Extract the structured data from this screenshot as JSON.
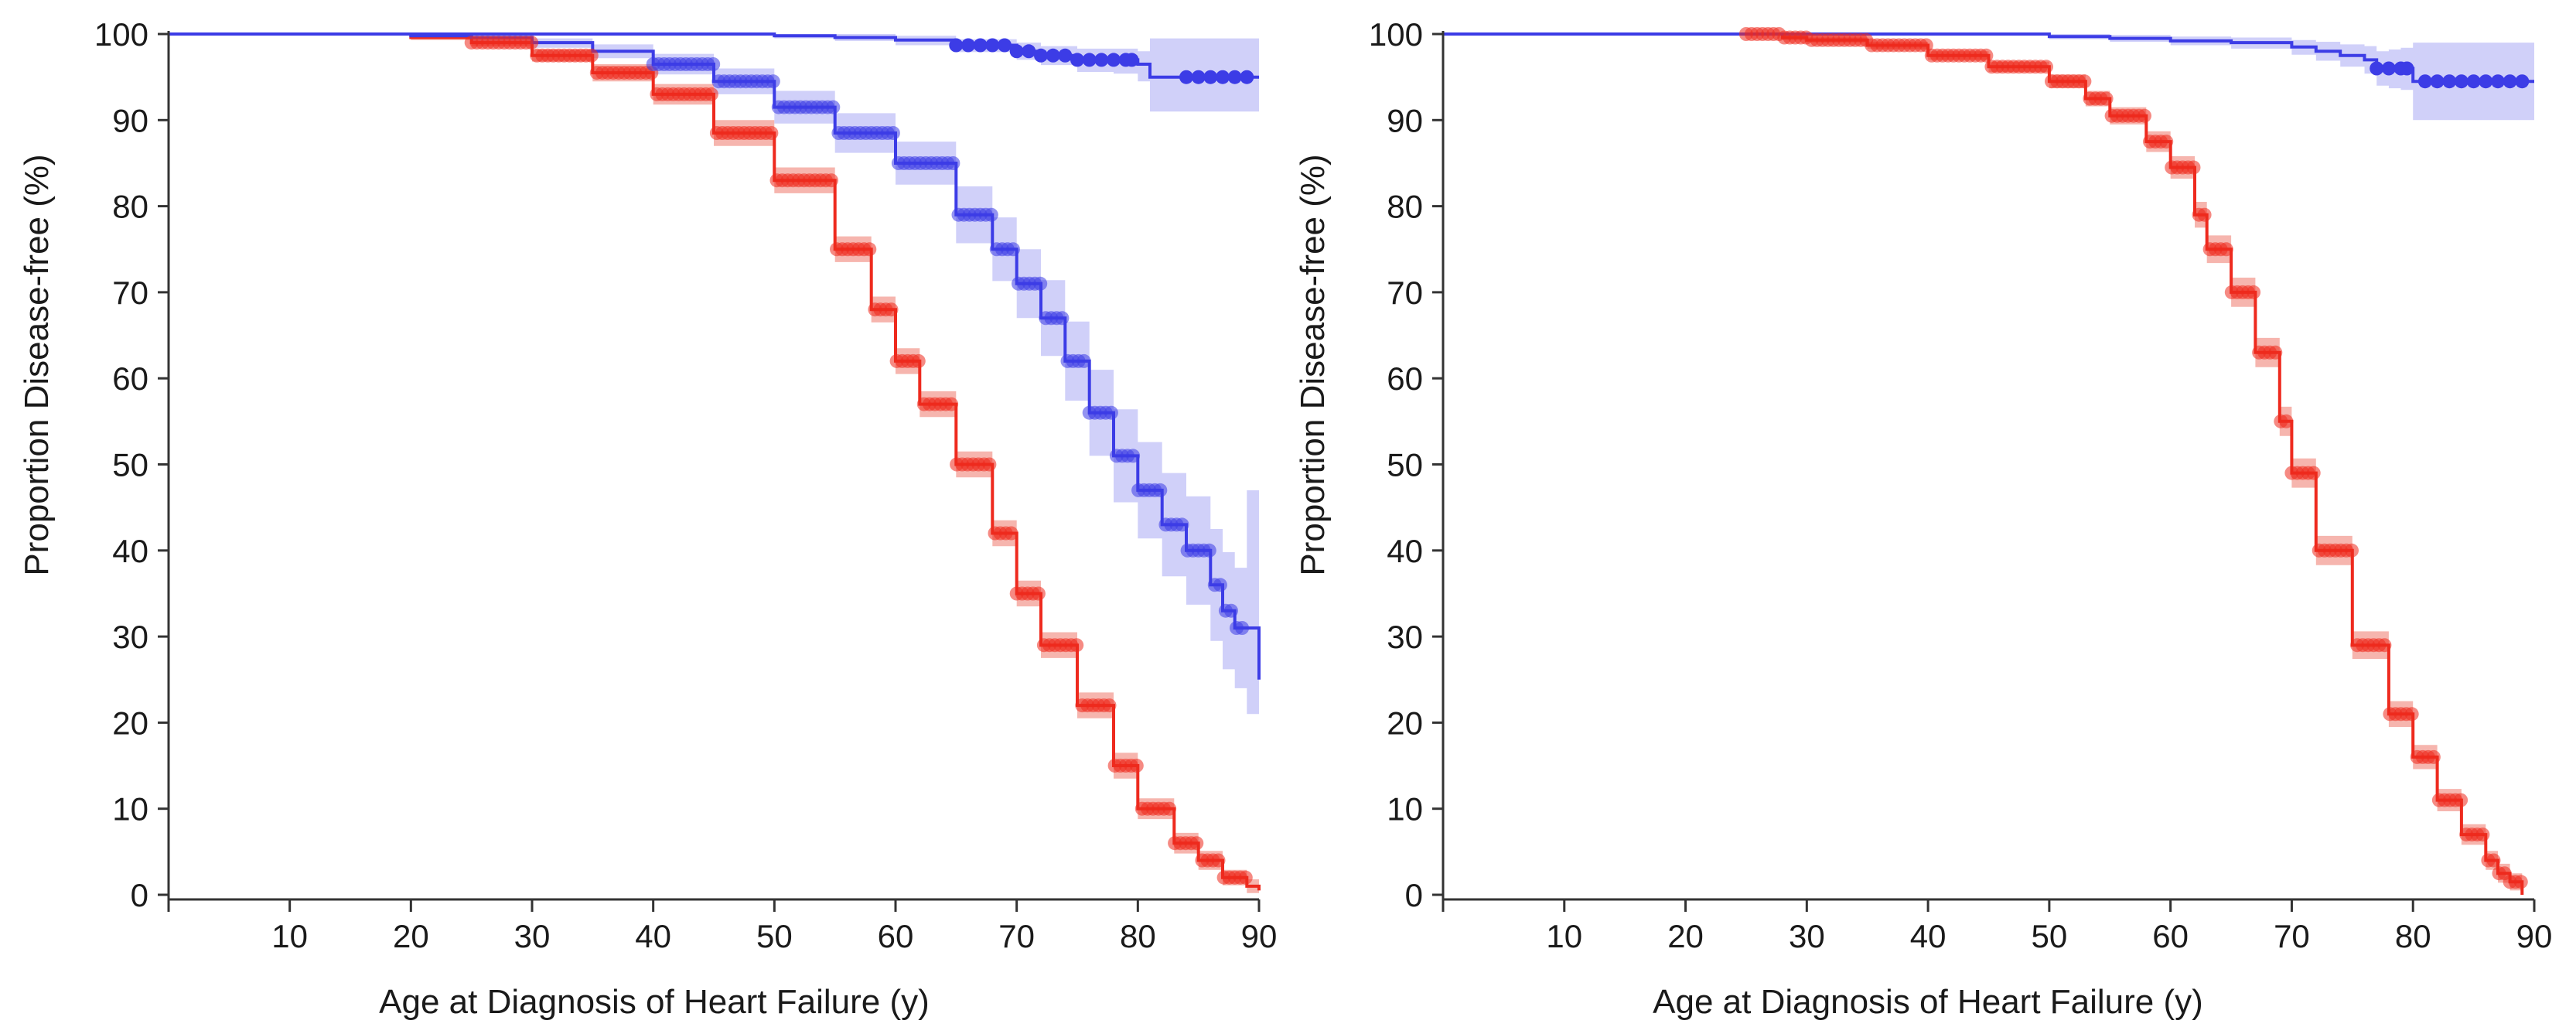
{
  "figure": {
    "background": "#ffffff",
    "colors": {
      "red_line": "#ee2a1e",
      "red_band": "#f4a29a",
      "blue_line": "#3c3ce6",
      "blue_band": "#c4c4f8"
    }
  },
  "chart_data": [
    {
      "id": "left",
      "type": "line",
      "xlabel": "Age at Diagnosis of Heart Failure (y)",
      "ylabel": "Proportion Disease-free (%)",
      "xlim": [
        0,
        90
      ],
      "ylim": [
        0,
        100
      ],
      "xticks": [
        10,
        20,
        30,
        40,
        50,
        60,
        70,
        80,
        90
      ],
      "yticks": [
        0,
        10,
        20,
        30,
        40,
        50,
        60,
        70,
        80,
        90,
        100
      ],
      "series": [
        {
          "name": "red",
          "color": "#ee2a1e",
          "band_color": "#f4a29a",
          "x": [
            0,
            18,
            20,
            25,
            30,
            35,
            40,
            45,
            50,
            55,
            58,
            60,
            62,
            65,
            68,
            70,
            72,
            75,
            78,
            80,
            83,
            85,
            87,
            89,
            90
          ],
          "y": [
            100,
            100,
            99.6,
            99,
            97.5,
            95.5,
            93,
            88.5,
            83,
            75,
            68,
            62,
            57,
            50,
            42,
            35,
            29,
            22,
            15,
            10,
            6,
            4,
            2,
            1,
            0.5
          ],
          "lower": [
            100,
            100,
            99.3,
            98.6,
            96.8,
            94.5,
            91.8,
            87,
            81.5,
            73.5,
            66.5,
            60.5,
            55.5,
            48.5,
            40.5,
            33.5,
            27.5,
            20.5,
            13.5,
            8.8,
            4.8,
            2.9,
            1.1,
            0.2,
            0
          ],
          "upper": [
            100,
            100,
            99.9,
            99.4,
            98.2,
            96.5,
            94.2,
            90,
            84.5,
            76.5,
            69.5,
            63.5,
            58.5,
            51.5,
            43.5,
            36.5,
            30.5,
            23.5,
            16.5,
            11.2,
            7.2,
            5.1,
            2.9,
            1.8,
            1
          ]
        },
        {
          "name": "blue",
          "color": "#3c3ce6",
          "band_color": "#c4c4f8",
          "x": [
            0,
            20,
            25,
            30,
            35,
            40,
            45,
            50,
            55,
            60,
            65,
            68,
            70,
            72,
            74,
            76,
            78,
            80,
            82,
            84,
            86,
            87,
            88,
            89,
            90
          ],
          "y": [
            100,
            99.8,
            99.6,
            99,
            98,
            96.5,
            94.5,
            91.5,
            88.5,
            85,
            79,
            75,
            71,
            67,
            62,
            56,
            51,
            47,
            43,
            40,
            36,
            33,
            31,
            31,
            25
          ],
          "lower": [
            100,
            99.6,
            99.2,
            98.4,
            97.2,
            95.3,
            93,
            89.6,
            86.2,
            82.5,
            75.7,
            71.3,
            67,
            62.6,
            57.4,
            51,
            45.6,
            41.4,
            37,
            33.7,
            29.5,
            26.2,
            24,
            21,
            14
          ],
          "upper": [
            100,
            99.95,
            99.8,
            99.5,
            98.8,
            97.7,
            96,
            93.4,
            90.8,
            87.5,
            82.3,
            78.7,
            75,
            71.4,
            66.6,
            61,
            56.4,
            52.6,
            49,
            46.3,
            42.5,
            39.8,
            38,
            47,
            47
          ]
        },
        {
          "name": "blue-upper",
          "color": "#3c3ce6",
          "band_color": "#c4c4f8",
          "x": [
            0,
            20,
            30,
            40,
            50,
            55,
            60,
            65,
            70,
            72,
            75,
            78,
            80,
            81,
            83,
            85,
            88,
            90
          ],
          "y": [
            100,
            100,
            100,
            100,
            99.8,
            99.6,
            99.3,
            98.7,
            98,
            97.5,
            97,
            97,
            96.5,
            95,
            95,
            95,
            95,
            95
          ],
          "lower": [
            100,
            100,
            100,
            100,
            99.5,
            99.2,
            98.7,
            97.9,
            97,
            96.4,
            95.6,
            95.4,
            94.5,
            91,
            91,
            91,
            91,
            91
          ],
          "upper": [
            100,
            100,
            100,
            100,
            100,
            100,
            99.8,
            99.4,
            99,
            98.6,
            98.3,
            98.3,
            98,
            99.5,
            99.5,
            99.5,
            99.5,
            99.5
          ],
          "censor_x": [
            65,
            66,
            67,
            68,
            69,
            70,
            71,
            72,
            73,
            74,
            75,
            76,
            77,
            78,
            79,
            79.5,
            84,
            85,
            86,
            87,
            88,
            89
          ]
        }
      ]
    },
    {
      "id": "right",
      "type": "line",
      "xlabel": "Age at Diagnosis of Heart Failure (y)",
      "ylabel": "Proportion Disease-free (%)",
      "xlim": [
        0,
        90
      ],
      "ylim": [
        0,
        100
      ],
      "xticks": [
        10,
        20,
        30,
        40,
        50,
        60,
        70,
        80,
        90
      ],
      "yticks": [
        0,
        10,
        20,
        30,
        40,
        50,
        60,
        70,
        80,
        90,
        100
      ],
      "series": [
        {
          "name": "red",
          "color": "#ee2a1e",
          "band_color": "#f4a29a",
          "x": [
            0,
            17,
            21,
            28,
            30,
            35,
            40,
            45,
            50,
            53,
            55,
            58,
            60,
            62,
            63,
            65,
            67,
            69,
            70,
            72,
            75,
            78,
            80,
            82,
            84,
            86,
            87,
            88,
            89
          ],
          "y": [
            100,
            100,
            100,
            99.6,
            99.3,
            98.7,
            97.5,
            96.2,
            94.5,
            92.5,
            90.5,
            87.5,
            84.5,
            79,
            75,
            70,
            63,
            55,
            49,
            40,
            29,
            21,
            16,
            11,
            7,
            4,
            2.5,
            1.5,
            0
          ],
          "lower": [
            100,
            100,
            100,
            99.3,
            99,
            98.3,
            97,
            95.6,
            93.7,
            91.6,
            89.5,
            86.3,
            83.2,
            77.5,
            73.4,
            68.3,
            61.3,
            53.3,
            47.3,
            38.3,
            27.4,
            19.5,
            14.6,
            9.7,
            5.8,
            2.9,
            1.4,
            0.5,
            0
          ],
          "upper": [
            100,
            100,
            100,
            99.9,
            99.6,
            99.1,
            98,
            96.8,
            95.3,
            93.4,
            91.5,
            88.7,
            85.8,
            80.5,
            76.6,
            71.7,
            64.7,
            56.7,
            50.7,
            41.7,
            30.6,
            22.5,
            17.4,
            12.3,
            8.2,
            5.1,
            3.6,
            2.5,
            1
          ]
        },
        {
          "name": "blue",
          "color": "#3c3ce6",
          "band_color": "#c4c4f8",
          "x": [
            0,
            30,
            40,
            50,
            55,
            60,
            65,
            70,
            72,
            74,
            76,
            77,
            78,
            79,
            80,
            85,
            90
          ],
          "y": [
            100,
            100,
            100,
            99.7,
            99.5,
            99.2,
            99,
            98.5,
            98,
            97.5,
            97,
            96,
            96,
            96,
            94.5,
            94.5,
            94.5
          ],
          "lower": [
            100,
            100,
            100,
            99.4,
            99.1,
            98.7,
            98.3,
            97.6,
            96.9,
            96.2,
            95.4,
            94,
            93.7,
            93.5,
            90,
            90,
            90
          ],
          "upper": [
            100,
            100,
            100,
            100,
            99.9,
            99.7,
            99.6,
            99.3,
            99.1,
            98.8,
            98.6,
            98,
            98.2,
            98.4,
            99,
            99,
            99
          ],
          "censor_x": [
            77,
            78,
            79,
            79.5,
            81,
            82,
            83,
            84,
            85,
            86,
            87,
            88,
            89
          ]
        }
      ]
    }
  ]
}
